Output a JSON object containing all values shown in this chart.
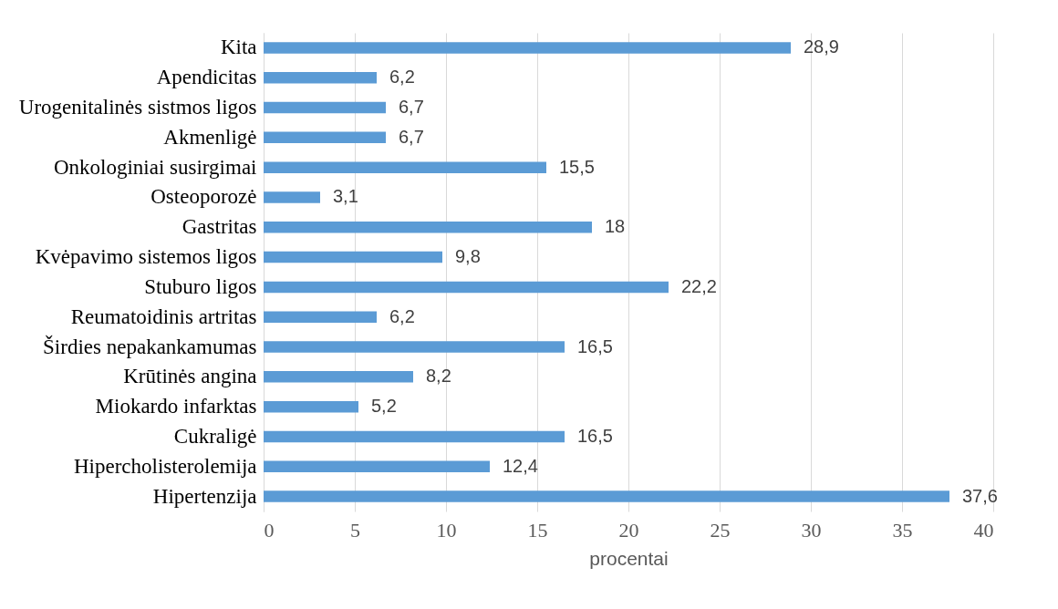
{
  "chart_data": {
    "type": "bar",
    "orientation": "horizontal",
    "xlabel": "procentai",
    "categories": [
      "Kita",
      "Apendicitas",
      "Urogenitalinės sistmos ligos",
      "Akmenligė",
      "Onkologiniai susirgimai",
      "Osteoporozė",
      "Gastritas",
      "Kvėpavimo sistemos ligos",
      "Stuburo ligos",
      "Reumatoidinis artritas",
      "Širdies nepakankamumas",
      "Krūtinės angina",
      "Miokardo infarktas",
      "Cukraligė",
      "Hipercholisterolemija",
      "Hipertenzija"
    ],
    "values": [
      28.9,
      6.2,
      6.7,
      6.7,
      15.5,
      3.1,
      18,
      9.8,
      22.2,
      6.2,
      16.5,
      8.2,
      5.2,
      16.5,
      12.4,
      37.6
    ],
    "value_labels": [
      "28,9",
      "6,2",
      "6,7",
      "6,7",
      "15,5",
      "3,1",
      "18",
      "9,8",
      "22,2",
      "6,2",
      "16,5",
      "8,2",
      "5,2",
      "16,5",
      "12,4",
      "37,6"
    ],
    "color": "#5b9bd5",
    "xlim": [
      0,
      40
    ],
    "xticks": [
      0,
      5,
      10,
      15,
      20,
      25,
      30,
      35,
      40
    ],
    "grid": "x"
  }
}
